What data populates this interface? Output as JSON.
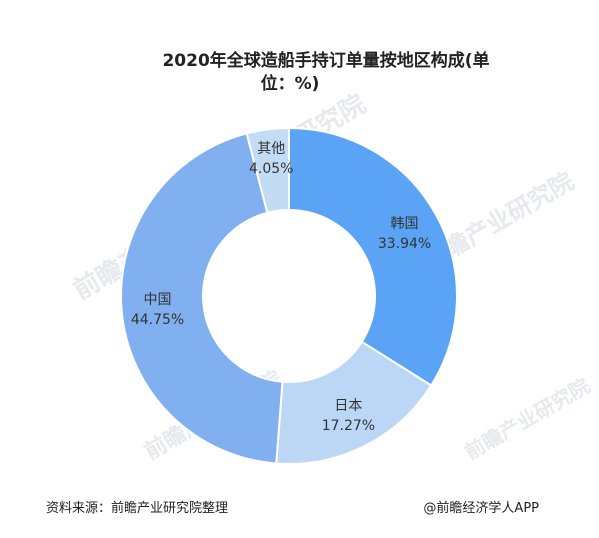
{
  "chart_data": {
    "type": "pie",
    "donut": true,
    "title_lines": [
      "2020年全球造船手持订单量按地区构成(单",
      "位：%)"
    ],
    "categories": [
      "韩国",
      "日本",
      "中国",
      "其他"
    ],
    "values": [
      33.94,
      17.27,
      44.75,
      4.05
    ],
    "value_labels": [
      "33.94%",
      "17.27%",
      "44.75%",
      "4.05%"
    ],
    "colors": [
      "#5ba4f5",
      "#bcd7f6",
      "#80b0ef",
      "#c3dcf6"
    ],
    "start_angle_deg": 0,
    "direction": "clockwise"
  },
  "source_text": "资料来源：前瞻产业研究院整理",
  "credit_text": "@前瞻经济学人APP",
  "watermark_text": "前瞻产业研究院"
}
